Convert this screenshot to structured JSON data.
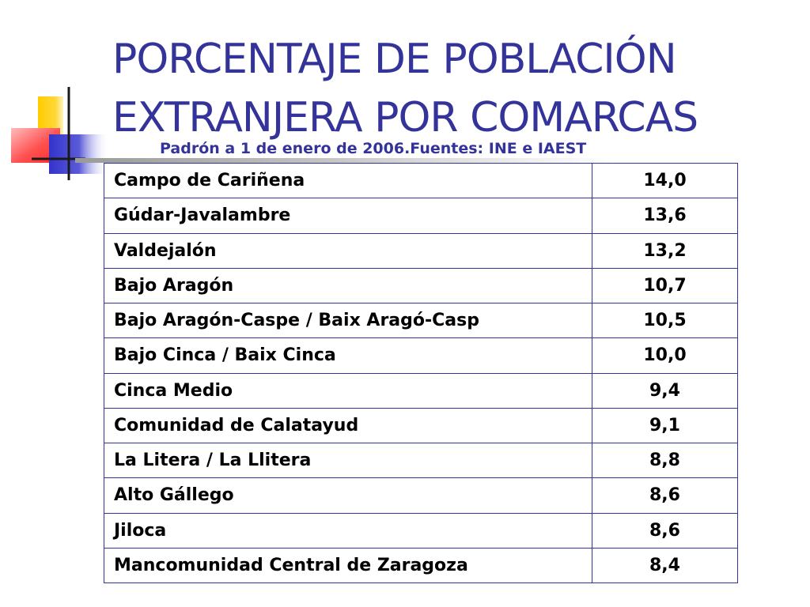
{
  "title": {
    "line1": "PORCENTAJE DE POBLACIÓN",
    "line2": "EXTRANJERA POR COMARCAS"
  },
  "subtitle": "Padrón a 1 de enero de 2006.Fuentes: INE e IAEST",
  "colors": {
    "title": "#333399",
    "table_border": "#333399",
    "deco_yellow": "#ffcc00",
    "deco_blue": "#3333cc",
    "deco_red": "#ff3333"
  },
  "chart_data": {
    "type": "table",
    "rows": [
      {
        "comarca": "Campo de Cariñena",
        "valor": "14,0"
      },
      {
        "comarca": "Gúdar-Javalambre",
        "valor": "13,6"
      },
      {
        "comarca": "Valdejalón",
        "valor": "13,2"
      },
      {
        "comarca": "Bajo Aragón",
        "valor": "10,7"
      },
      {
        "comarca": "Bajo Aragón-Caspe / Baix Aragó-Casp",
        "valor": "10,5"
      },
      {
        "comarca": "Bajo Cinca / Baix Cinca",
        "valor": "10,0"
      },
      {
        "comarca": "Cinca Medio",
        "valor": "9,4"
      },
      {
        "comarca": "Comunidad de Calatayud",
        "valor": "9,1"
      },
      {
        "comarca": "La Litera / La Llitera",
        "valor": "8,8"
      },
      {
        "comarca": "Alto Gállego",
        "valor": "8,6"
      },
      {
        "comarca": "Jiloca",
        "valor": "8,6"
      },
      {
        "comarca": "Mancomunidad Central de Zaragoza",
        "valor": "8,4"
      }
    ]
  }
}
